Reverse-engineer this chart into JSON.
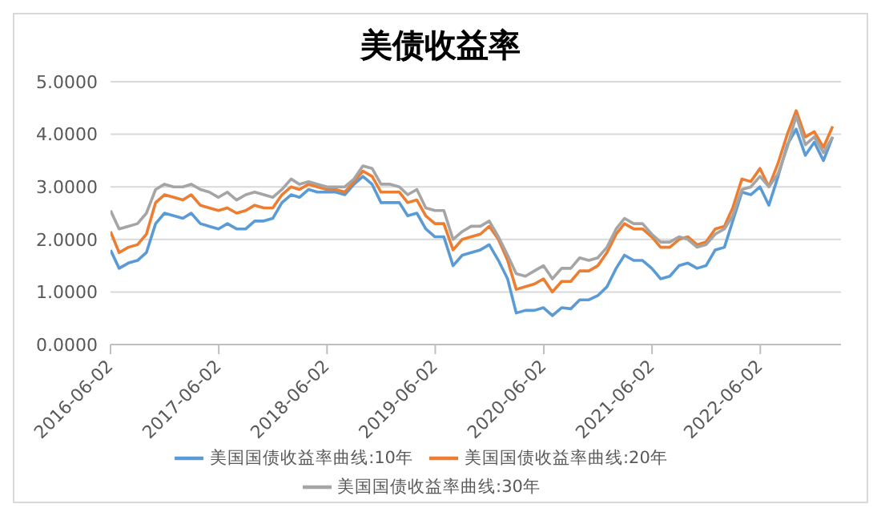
{
  "chart_data": {
    "type": "line",
    "title": "美债收益率",
    "x": [
      "2016-06-02",
      "2016-07",
      "2016-08",
      "2016-09",
      "2016-10",
      "2016-11",
      "2016-12",
      "2017-01",
      "2017-02",
      "2017-03",
      "2017-04",
      "2017-05",
      "2017-06",
      "2017-07",
      "2017-08",
      "2017-09",
      "2017-10",
      "2017-11",
      "2017-12",
      "2018-01",
      "2018-02",
      "2018-03",
      "2018-04",
      "2018-05",
      "2018-06",
      "2018-07",
      "2018-08",
      "2018-09",
      "2018-10",
      "2018-11",
      "2018-12",
      "2019-01",
      "2019-02",
      "2019-03",
      "2019-04",
      "2019-05",
      "2019-06",
      "2019-07",
      "2019-08",
      "2019-09",
      "2019-10",
      "2019-11",
      "2019-12",
      "2020-01",
      "2020-02",
      "2020-03",
      "2020-04",
      "2020-05",
      "2020-06",
      "2020-07",
      "2020-08",
      "2020-09",
      "2020-10",
      "2020-11",
      "2020-12",
      "2021-01",
      "2021-02",
      "2021-03",
      "2021-04",
      "2021-05",
      "2021-06",
      "2021-07",
      "2021-08",
      "2021-09",
      "2021-10",
      "2021-11",
      "2021-12",
      "2022-01",
      "2022-02",
      "2022-03",
      "2022-04",
      "2022-05",
      "2022-06",
      "2022-07",
      "2022-08",
      "2022-09",
      "2022-10",
      "2022-11",
      "2022-12",
      "2023-01",
      "2023-02"
    ],
    "series": [
      {
        "name": "美国国债收益率曲线:10年",
        "color": "#5b9bd5",
        "values": [
          1.8,
          1.45,
          1.55,
          1.6,
          1.75,
          2.3,
          2.5,
          2.45,
          2.4,
          2.5,
          2.3,
          2.25,
          2.2,
          2.3,
          2.2,
          2.2,
          2.35,
          2.35,
          2.4,
          2.7,
          2.85,
          2.8,
          2.95,
          2.9,
          2.9,
          2.9,
          2.85,
          3.05,
          3.2,
          3.05,
          2.7,
          2.7,
          2.7,
          2.45,
          2.5,
          2.2,
          2.05,
          2.05,
          1.5,
          1.7,
          1.75,
          1.8,
          1.9,
          1.6,
          1.25,
          0.6,
          0.65,
          0.65,
          0.7,
          0.55,
          0.7,
          0.68,
          0.85,
          0.85,
          0.93,
          1.1,
          1.45,
          1.7,
          1.6,
          1.6,
          1.45,
          1.25,
          1.3,
          1.5,
          1.55,
          1.45,
          1.5,
          1.8,
          1.85,
          2.35,
          2.9,
          2.85,
          3.0,
          2.65,
          3.2,
          3.8,
          4.1,
          3.6,
          3.85,
          3.5,
          3.95
        ]
      },
      {
        "name": "美国国债收益率曲线:20年",
        "color": "#ed7d31",
        "values": [
          2.15,
          1.75,
          1.85,
          1.9,
          2.1,
          2.7,
          2.85,
          2.8,
          2.75,
          2.85,
          2.65,
          2.6,
          2.55,
          2.6,
          2.5,
          2.55,
          2.65,
          2.6,
          2.6,
          2.85,
          3.0,
          2.95,
          3.05,
          3.0,
          2.95,
          2.95,
          2.9,
          3.1,
          3.3,
          3.2,
          2.9,
          2.9,
          2.9,
          2.7,
          2.75,
          2.45,
          2.3,
          2.3,
          1.8,
          2.0,
          2.05,
          2.1,
          2.25,
          2.0,
          1.6,
          1.05,
          1.1,
          1.15,
          1.25,
          1.0,
          1.2,
          1.2,
          1.4,
          1.4,
          1.5,
          1.75,
          2.1,
          2.3,
          2.2,
          2.2,
          2.05,
          1.85,
          1.85,
          2.0,
          2.05,
          1.9,
          1.95,
          2.2,
          2.25,
          2.6,
          3.15,
          3.1,
          3.35,
          3.0,
          3.45,
          4.0,
          4.45,
          3.95,
          4.05,
          3.75,
          4.15
        ]
      },
      {
        "name": "美国国债收益率曲线:30年",
        "color": "#a5a5a5",
        "values": [
          2.55,
          2.2,
          2.25,
          2.3,
          2.5,
          2.95,
          3.05,
          3.0,
          3.0,
          3.05,
          2.95,
          2.9,
          2.8,
          2.9,
          2.75,
          2.85,
          2.9,
          2.85,
          2.8,
          2.95,
          3.15,
          3.05,
          3.1,
          3.05,
          3.0,
          3.0,
          3.0,
          3.15,
          3.4,
          3.35,
          3.05,
          3.05,
          3.0,
          2.85,
          2.95,
          2.6,
          2.55,
          2.55,
          2.0,
          2.15,
          2.25,
          2.25,
          2.35,
          2.05,
          1.7,
          1.35,
          1.3,
          1.4,
          1.5,
          1.25,
          1.45,
          1.45,
          1.65,
          1.6,
          1.65,
          1.85,
          2.2,
          2.4,
          2.3,
          2.3,
          2.1,
          1.95,
          1.95,
          2.05,
          2.0,
          1.85,
          1.9,
          2.1,
          2.2,
          2.45,
          2.95,
          3.0,
          3.2,
          3.0,
          3.25,
          3.75,
          4.35,
          3.8,
          3.95,
          3.65,
          3.95
        ]
      }
    ],
    "xlim": [
      "2016-06-02",
      "2023-03-01"
    ],
    "xticks": [
      "2016-06-02",
      "2017-06-02",
      "2018-06-02",
      "2019-06-02",
      "2020-06-02",
      "2021-06-02",
      "2022-06-02"
    ],
    "ylim": [
      0,
      5
    ],
    "yticks": [
      {
        "value": 0,
        "label": "0.0000"
      },
      {
        "value": 1,
        "label": "1.0000"
      },
      {
        "value": 2,
        "label": "2.0000"
      },
      {
        "value": 3,
        "label": "3.0000"
      },
      {
        "value": 4,
        "label": "4.0000"
      },
      {
        "value": 5,
        "label": "5.0000"
      }
    ],
    "grid": "y",
    "legend": "bottom",
    "marker": "none",
    "line_style": "solid"
  }
}
